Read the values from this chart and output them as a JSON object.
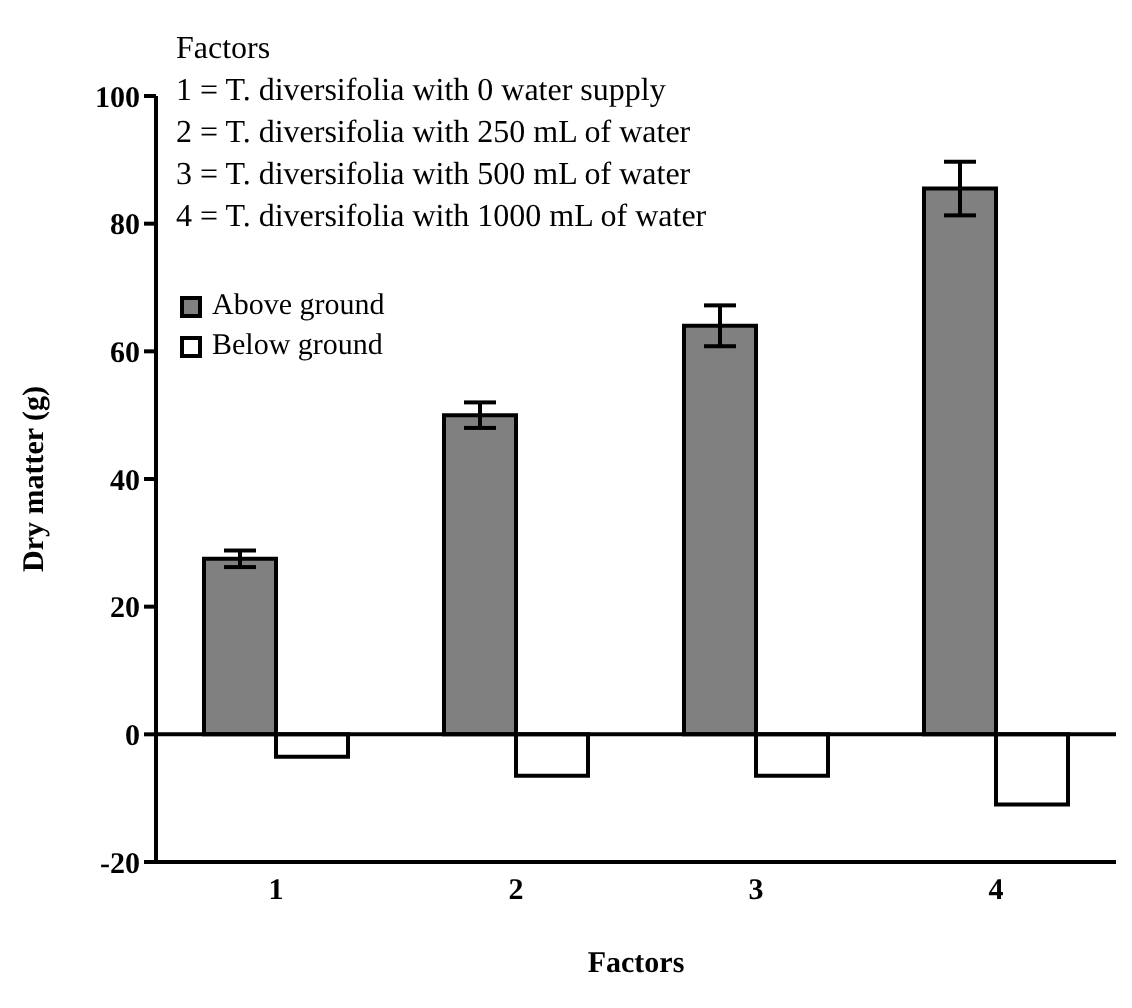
{
  "chart_data": {
    "type": "bar",
    "xlabel": "Factors",
    "ylabel": "Dry matter (g)",
    "categories": [
      "1",
      "2",
      "3",
      "4"
    ],
    "series": [
      {
        "name": "Above ground",
        "color": "#808080",
        "values": [
          27.5,
          50,
          64,
          85.5
        ],
        "errors": [
          1.3,
          2,
          3.2,
          4.2
        ]
      },
      {
        "name": "Below ground",
        "color": "#ffffff",
        "values": [
          -3.5,
          -6.5,
          -6.5,
          -11
        ]
      }
    ],
    "ylim": [
      -20,
      100
    ],
    "yticks": [
      -20,
      0,
      20,
      40,
      60,
      80,
      100
    ],
    "ref_lines": [
      {
        "axis": "y",
        "value": 0
      }
    ],
    "legend": "top left",
    "grid": false,
    "annotations": [
      "Factors",
      "1 = T. diversifolia with 0 water supply",
      "2 = T. diversifolia with 250 mL of water",
      "3 = T. diversifolia with 500 mL of water",
      "4 = T. diversifolia with 1000 mL of water"
    ]
  }
}
